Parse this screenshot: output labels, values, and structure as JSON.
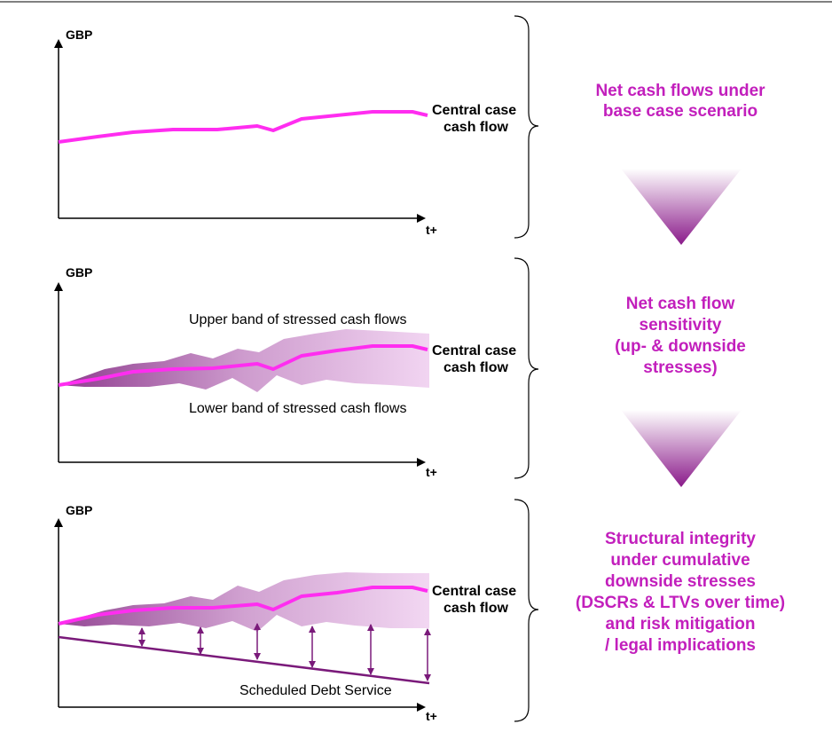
{
  "colors": {
    "central_line": "#ff2df0",
    "band_fill": "#e6bfe6",
    "band_dark": "#8a2a8a",
    "accent_text": "#c21fbc",
    "debt_line": "#7a1a7a",
    "arrow_color": "#7a1a7a"
  },
  "panels": [
    {
      "y_label": "GBP",
      "x_label": "t+",
      "central_label_1": "Central case",
      "central_label_2": "cash flow",
      "description": [
        "Net cash flows under",
        "base case scenario"
      ]
    },
    {
      "y_label": "GBP",
      "x_label": "t+",
      "central_label_1": "Central case",
      "central_label_2": "cash flow",
      "upper_band_label": "Upper band of stressed cash flows",
      "lower_band_label": "Lower band of stressed cash flows",
      "description": [
        "Net cash flow",
        "sensitivity",
        "(up- & downside",
        "stresses)"
      ]
    },
    {
      "y_label": "GBP",
      "x_label": "t+",
      "central_label_1": "Central case",
      "central_label_2": "cash flow",
      "debt_label": "Scheduled Debt Service",
      "description": [
        "Structural integrity",
        "under cumulative",
        "downside stresses",
        "(DSCRs & LTVs over time)",
        "and risk mitigation",
        "/ legal implications"
      ]
    }
  ],
  "flow_arrow_icon": "triangle-down-gradient-icon",
  "brace_icon": "right-curly-brace-icon"
}
